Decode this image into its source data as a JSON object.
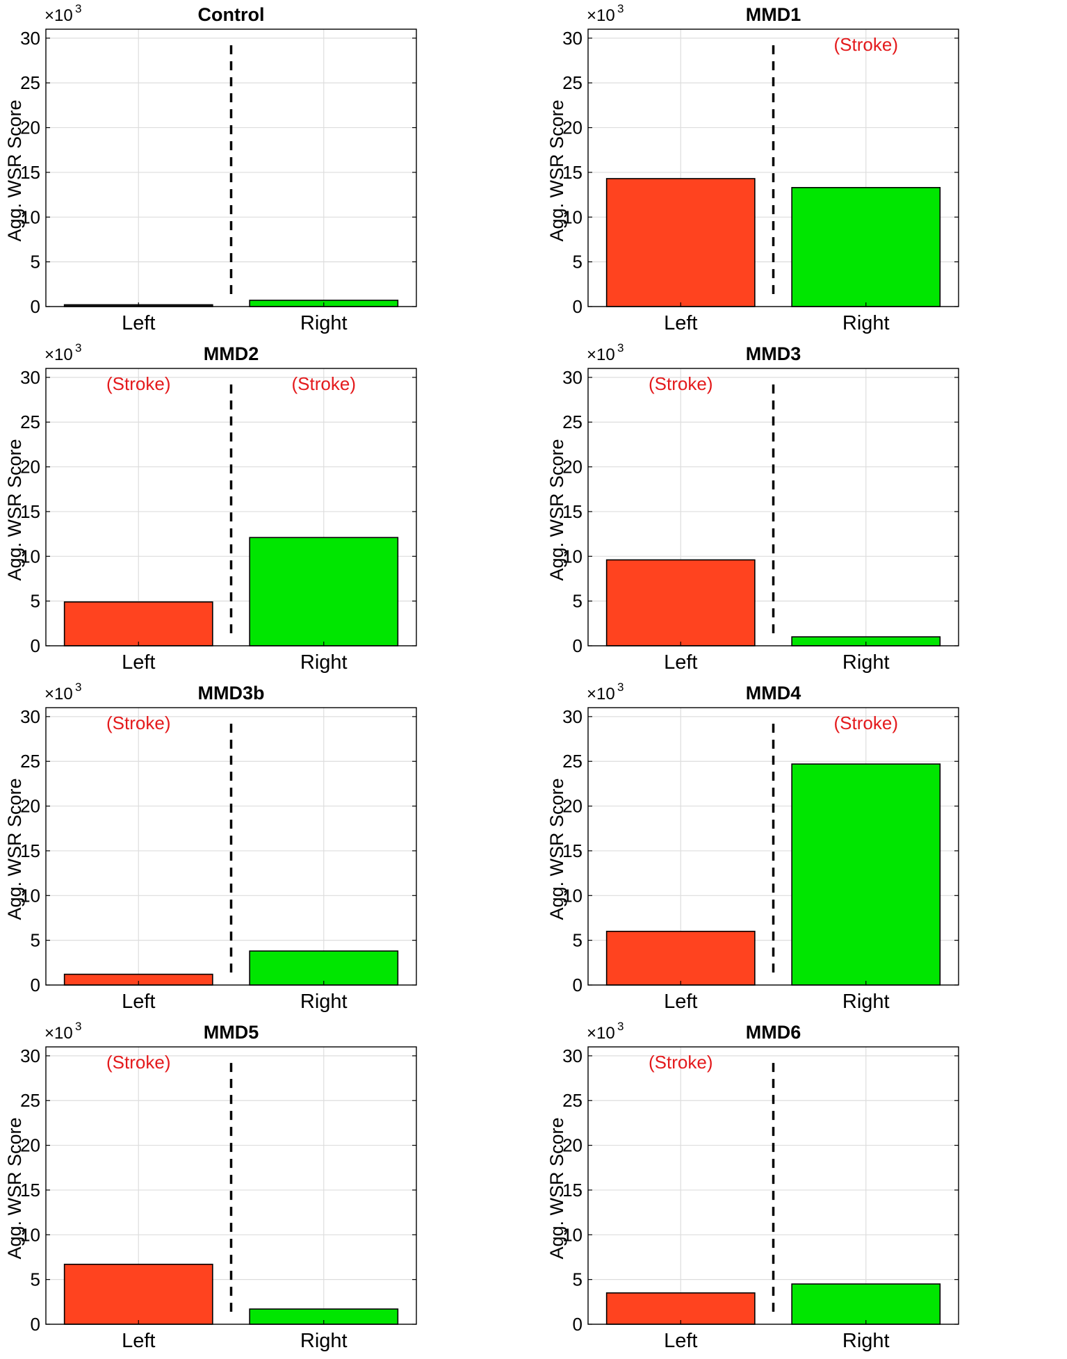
{
  "figure": {
    "colors": {
      "left_bar": "#ff431f",
      "right_bar": "#00e600",
      "stroke_label": "#e41a1c",
      "grid": "#dddddd",
      "axis": "#000000",
      "divider": "#000000"
    },
    "y_multiplier_label": "×10",
    "y_multiplier_exponent": "3"
  },
  "chart_data": [
    {
      "type": "bar",
      "title": "Control",
      "categories": [
        "Left",
        "Right"
      ],
      "values": [
        0.2,
        0.7
      ],
      "ylabel": "Agg. WSR Score",
      "xlabel": "",
      "ylim": [
        0,
        31
      ],
      "yticks": [
        "0",
        "5",
        "10",
        "15",
        "20",
        "25",
        "30"
      ],
      "grid": true,
      "bar_colors": [
        "#222222",
        "#00e600"
      ],
      "annotations": [
        "",
        ""
      ]
    },
    {
      "type": "bar",
      "title": "MMD1",
      "categories": [
        "Left",
        "Right"
      ],
      "values": [
        14.3,
        13.3
      ],
      "ylabel": "Agg. WSR Score",
      "xlabel": "",
      "ylim": [
        0,
        31
      ],
      "yticks": [
        "0",
        "5",
        "10",
        "15",
        "20",
        "25",
        "30"
      ],
      "grid": true,
      "bar_colors": [
        "#ff431f",
        "#00e600"
      ],
      "annotations": [
        "",
        "(Stroke)"
      ]
    },
    {
      "type": "bar",
      "title": "MMD2",
      "categories": [
        "Left",
        "Right"
      ],
      "values": [
        4.9,
        12.1
      ],
      "ylabel": "Agg. WSR Score",
      "xlabel": "",
      "ylim": [
        0,
        31
      ],
      "yticks": [
        "0",
        "5",
        "10",
        "15",
        "20",
        "25",
        "30"
      ],
      "grid": true,
      "bar_colors": [
        "#ff431f",
        "#00e600"
      ],
      "annotations": [
        "(Stroke)",
        "(Stroke)"
      ]
    },
    {
      "type": "bar",
      "title": "MMD3",
      "categories": [
        "Left",
        "Right"
      ],
      "values": [
        9.6,
        1.0
      ],
      "ylabel": "Agg. WSR Score",
      "xlabel": "",
      "ylim": [
        0,
        31
      ],
      "yticks": [
        "0",
        "5",
        "10",
        "15",
        "20",
        "25",
        "30"
      ],
      "grid": true,
      "bar_colors": [
        "#ff431f",
        "#00e600"
      ],
      "annotations": [
        "(Stroke)",
        ""
      ]
    },
    {
      "type": "bar",
      "title": "MMD3b",
      "categories": [
        "Left",
        "Right"
      ],
      "values": [
        1.2,
        3.8
      ],
      "ylabel": "Agg. WSR Score",
      "xlabel": "",
      "ylim": [
        0,
        31
      ],
      "yticks": [
        "0",
        "5",
        "10",
        "15",
        "20",
        "25",
        "30"
      ],
      "grid": true,
      "bar_colors": [
        "#ff431f",
        "#00e600"
      ],
      "annotations": [
        "(Stroke)",
        ""
      ]
    },
    {
      "type": "bar",
      "title": "MMD4",
      "categories": [
        "Left",
        "Right"
      ],
      "values": [
        6.0,
        24.7
      ],
      "ylabel": "Agg. WSR Score",
      "xlabel": "",
      "ylim": [
        0,
        31
      ],
      "yticks": [
        "0",
        "5",
        "10",
        "15",
        "20",
        "25",
        "30"
      ],
      "grid": true,
      "bar_colors": [
        "#ff431f",
        "#00e600"
      ],
      "annotations": [
        "",
        "(Stroke)"
      ]
    },
    {
      "type": "bar",
      "title": "MMD5",
      "categories": [
        "Left",
        "Right"
      ],
      "values": [
        6.7,
        1.7
      ],
      "ylabel": "Agg. WSR Score",
      "xlabel": "",
      "ylim": [
        0,
        31
      ],
      "yticks": [
        "0",
        "5",
        "10",
        "15",
        "20",
        "25",
        "30"
      ],
      "grid": true,
      "bar_colors": [
        "#ff431f",
        "#00e600"
      ],
      "annotations": [
        "(Stroke)",
        ""
      ]
    },
    {
      "type": "bar",
      "title": "MMD6",
      "categories": [
        "Left",
        "Right"
      ],
      "values": [
        3.5,
        4.5
      ],
      "ylabel": "Agg. WSR Score",
      "xlabel": "",
      "ylim": [
        0,
        31
      ],
      "yticks": [
        "0",
        "5",
        "10",
        "15",
        "20",
        "25",
        "30"
      ],
      "grid": true,
      "bar_colors": [
        "#ff431f",
        "#00e600"
      ],
      "annotations": [
        "(Stroke)",
        ""
      ]
    }
  ]
}
